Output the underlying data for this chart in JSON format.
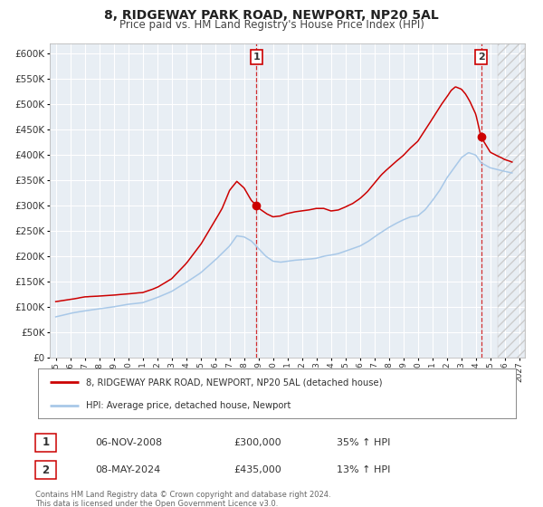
{
  "title": "8, RIDGEWAY PARK ROAD, NEWPORT, NP20 5AL",
  "subtitle": "Price paid vs. HM Land Registry's House Price Index (HPI)",
  "hpi_label": "HPI: Average price, detached house, Newport",
  "property_label": "8, RIDGEWAY PARK ROAD, NEWPORT, NP20 5AL (detached house)",
  "hpi_color": "#a8c8e8",
  "property_color": "#cc0000",
  "sale1_date": "06-NOV-2008",
  "sale1_price": 300000,
  "sale1_hpi": "35% ↑ HPI",
  "sale2_date": "08-MAY-2024",
  "sale2_price": 435000,
  "sale2_hpi": "13% ↑ HPI",
  "ylim": [
    0,
    620000
  ],
  "xlim_start": 1994.6,
  "xlim_end": 2027.4,
  "plot_bg": "#e8eef4",
  "grid_color": "#ffffff",
  "footer_text": "Contains HM Land Registry data © Crown copyright and database right 2024.\nThis data is licensed under the Open Government Licence v3.0.",
  "sale1_x": 2008.85,
  "sale2_x": 2024.36,
  "hpi_keypoints_x": [
    1995,
    1996,
    1997,
    1998,
    1999,
    2000,
    2001,
    2002,
    2003,
    2004,
    2005,
    2006,
    2007,
    2007.5,
    2008,
    2008.5,
    2009,
    2009.5,
    2010,
    2010.5,
    2011,
    2011.5,
    2012,
    2012.5,
    2013,
    2013.5,
    2014,
    2014.5,
    2015,
    2015.5,
    2016,
    2016.5,
    2017,
    2017.5,
    2018,
    2018.5,
    2019,
    2019.5,
    2020,
    2020.5,
    2021,
    2021.5,
    2022,
    2022.5,
    2023,
    2023.5,
    2024,
    2024.36,
    2025,
    2026,
    2026.5
  ],
  "hpi_keypoints_y": [
    80000,
    87000,
    92000,
    96000,
    100000,
    105000,
    108000,
    118000,
    130000,
    148000,
    167000,
    192000,
    220000,
    240000,
    238000,
    230000,
    215000,
    200000,
    190000,
    188000,
    190000,
    192000,
    193000,
    194000,
    196000,
    200000,
    202000,
    205000,
    210000,
    215000,
    220000,
    228000,
    238000,
    248000,
    257000,
    265000,
    272000,
    278000,
    280000,
    292000,
    310000,
    330000,
    355000,
    375000,
    395000,
    405000,
    400000,
    385000,
    375000,
    368000,
    365000
  ],
  "prop_keypoints_x": [
    1995,
    1996,
    1997,
    1998,
    1999,
    2000,
    2001,
    2002,
    2003,
    2004,
    2005,
    2006,
    2006.5,
    2007,
    2007.5,
    2008,
    2008.5,
    2008.85,
    2009,
    2009.5,
    2010,
    2010.5,
    2011,
    2011.5,
    2012,
    2012.5,
    2013,
    2013.5,
    2014,
    2014.5,
    2015,
    2015.5,
    2016,
    2016.5,
    2017,
    2017.5,
    2018,
    2018.5,
    2019,
    2019.5,
    2020,
    2020.5,
    2021,
    2021.5,
    2022,
    2022.3,
    2022.6,
    2023,
    2023.3,
    2023.6,
    2024.0,
    2024.36,
    2025,
    2026,
    2026.5
  ],
  "prop_keypoints_y": [
    110000,
    115000,
    120000,
    122000,
    124000,
    126000,
    128000,
    138000,
    155000,
    185000,
    222000,
    270000,
    295000,
    330000,
    348000,
    335000,
    310000,
    300000,
    295000,
    285000,
    278000,
    280000,
    285000,
    288000,
    290000,
    292000,
    295000,
    295000,
    290000,
    292000,
    298000,
    305000,
    315000,
    328000,
    345000,
    362000,
    375000,
    388000,
    400000,
    415000,
    428000,
    450000,
    472000,
    495000,
    515000,
    528000,
    535000,
    530000,
    520000,
    505000,
    480000,
    435000,
    405000,
    390000,
    385000
  ]
}
